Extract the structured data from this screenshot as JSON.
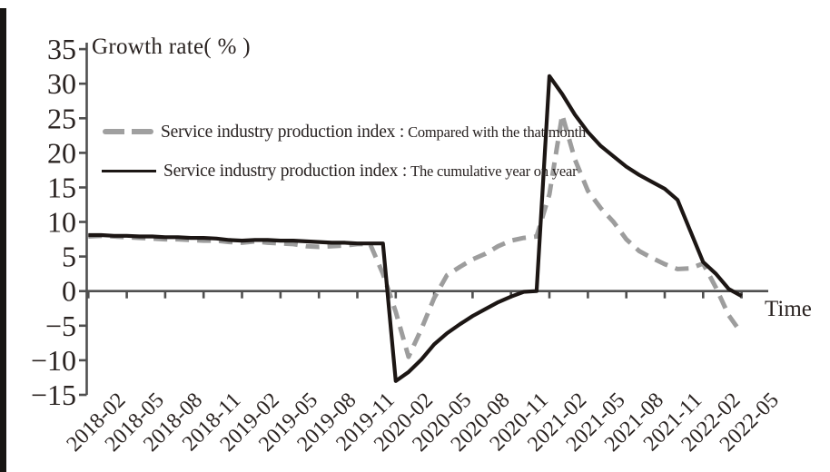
{
  "page": {
    "background_color": "#ffffff",
    "scan_artifact_color": "#171513"
  },
  "chart": {
    "y_axis_title": "Growth rate( % )",
    "x_axis_title": "Time",
    "axis_color": "#4f4f4f",
    "text_color": "#2a2321",
    "legend": [
      {
        "label_main": "Service industry production index :",
        "label_sub": "Compared with the that month",
        "style": "dashed",
        "color": "#a0a0a0"
      },
      {
        "label_main": "Service industry production index :",
        "label_sub": "The cumulative year on year",
        "style": "solid",
        "color": "#1c1614"
      }
    ]
  },
  "chart_data": {
    "type": "line",
    "title": "",
    "xlabel": "Time",
    "ylabel": "Growth rate(%)",
    "ylim": [
      -15,
      35
    ],
    "grid": false,
    "legend_position": "upper-left-inside",
    "y_ticks": [
      35,
      30,
      25,
      20,
      15,
      10,
      5,
      0,
      -5,
      -10,
      -15
    ],
    "y_tick_labels": [
      "35",
      "30",
      "25",
      "20",
      "15",
      "10",
      "5",
      "0",
      "−5",
      "−10",
      "−15"
    ],
    "x_start": "2018-02",
    "x_end": "2022-05",
    "x_step": "1 month",
    "x_tick_labels": [
      "2018-02",
      "2018-05",
      "2018-08",
      "2018-11",
      "2019-02",
      "2019-05",
      "2019-08",
      "2019-11",
      "2020-02",
      "2020-05",
      "2020-08",
      "2020-11",
      "2021-02",
      "2021-05",
      "2021-08",
      "2021-11",
      "2022-02",
      "2022-05"
    ],
    "x_ticks_every_n_points": 3,
    "series": [
      {
        "id": "monthly",
        "name": "Service industry production index : Compared with the that month",
        "style": "dashed",
        "color": "#9d9d9d",
        "stroke_width": 5,
        "dash": "15 9",
        "values": [
          7.9,
          8.0,
          7.9,
          7.8,
          7.7,
          7.6,
          7.5,
          7.5,
          7.4,
          7.3,
          7.3,
          7.1,
          7.0,
          7.2,
          7.0,
          6.9,
          6.8,
          6.5,
          6.4,
          6.5,
          6.6,
          6.8,
          6.8,
          2.5,
          -3.0,
          -9.5,
          -5.5,
          -1.0,
          2.3,
          3.5,
          4.6,
          5.4,
          6.5,
          7.3,
          7.7,
          7.9,
          14.0,
          25.5,
          19.0,
          14.5,
          12.0,
          10.0,
          7.5,
          5.8,
          4.8,
          3.9,
          3.2,
          3.3,
          4.0,
          0.5,
          -3.5,
          -6.1
        ]
      },
      {
        "id": "cumulative",
        "name": "Service industry production index : The cumulative year on year",
        "style": "solid",
        "color": "#1c1614",
        "stroke_width": 4.2,
        "dash": "",
        "values": [
          8.1,
          8.1,
          8.0,
          8.0,
          7.9,
          7.9,
          7.8,
          7.8,
          7.7,
          7.7,
          7.6,
          7.4,
          7.3,
          7.4,
          7.4,
          7.3,
          7.3,
          7.2,
          7.1,
          7.0,
          7.0,
          6.9,
          6.9,
          6.9,
          -13.0,
          -11.7,
          -9.9,
          -7.7,
          -6.1,
          -4.8,
          -3.6,
          -2.6,
          -1.6,
          -0.8,
          -0.1,
          0.0,
          31.1,
          28.5,
          25.5,
          23.0,
          21.0,
          19.5,
          18.0,
          16.8,
          15.8,
          14.8,
          13.2,
          8.7,
          4.2,
          2.5,
          0.3,
          -0.7
        ]
      }
    ]
  }
}
